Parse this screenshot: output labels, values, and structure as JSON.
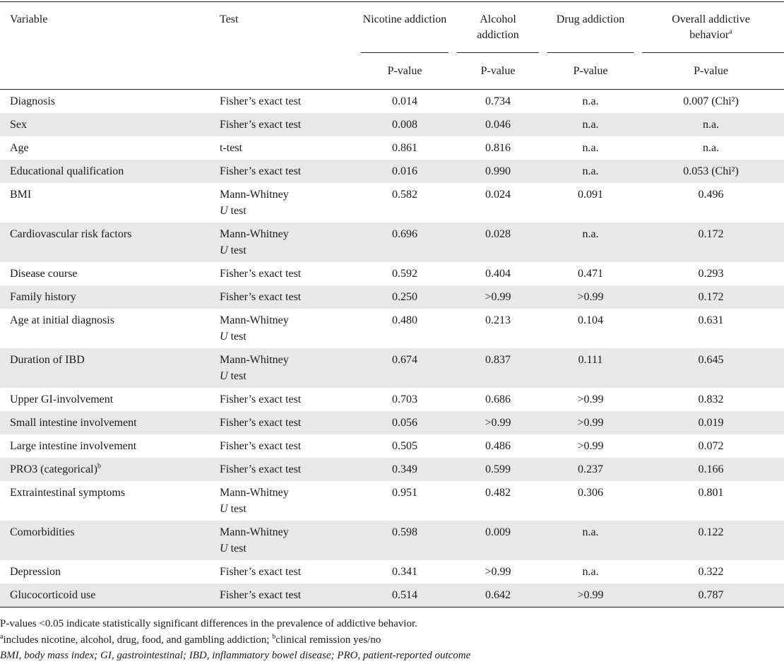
{
  "header": {
    "variable": "Variable",
    "test": "Test",
    "columns": [
      {
        "label": "Nicotine addiction",
        "sub": "P-value"
      },
      {
        "label": "Alcohol addiction",
        "sub": "P-value"
      },
      {
        "label": "Drug addiction",
        "sub": "P-value"
      },
      {
        "label": "Overall addictive behavior",
        "sup": "a",
        "sub": "P-value"
      }
    ]
  },
  "table": {
    "rows": [
      {
        "variable": "Diagnosis",
        "test": "Fisher’s exact test",
        "values": [
          "0.014",
          "0.734",
          "n.a.",
          "0.007 (Chi²)"
        ]
      },
      {
        "variable": "Sex",
        "test": "Fisher’s exact test",
        "values": [
          "0.008",
          "0.046",
          "n.a.",
          "n.a."
        ]
      },
      {
        "variable": "Age",
        "test": "t-test",
        "values": [
          "0.861",
          "0.816",
          "n.a.",
          "n.a."
        ]
      },
      {
        "variable": "Educational qualification",
        "test": "Fisher’s exact test",
        "values": [
          "0.016",
          "0.990",
          "n.a.",
          "0.053 (Chi²)"
        ]
      },
      {
        "variable": "BMI",
        "test": [
          "Mann-Whitney",
          "U",
          "test"
        ],
        "values": [
          "0.582",
          "0.024",
          "0.091",
          "0.496"
        ]
      },
      {
        "variable": "Cardiovascular risk factors",
        "test": [
          "Mann-Whitney",
          "U",
          "test"
        ],
        "values": [
          "0.696",
          "0.028",
          "n.a.",
          "0.172"
        ]
      },
      {
        "variable": "Disease course",
        "test": "Fisher’s exact test",
        "values": [
          "0.592",
          "0.404",
          "0.471",
          "0.293"
        ]
      },
      {
        "variable": "Family history",
        "test": "Fisher’s exact test",
        "values": [
          "0.250",
          ">0.99",
          ">0.99",
          "0.172"
        ]
      },
      {
        "variable": "Age at initial diagnosis",
        "test": [
          "Mann-Whitney",
          "U",
          "test"
        ],
        "values": [
          "0.480",
          "0.213",
          "0.104",
          "0.631"
        ]
      },
      {
        "variable": "Duration of IBD",
        "test": [
          "Mann-Whitney",
          "U",
          "test"
        ],
        "values": [
          "0.674",
          "0.837",
          "0.111",
          "0.645"
        ]
      },
      {
        "variable": "Upper GI-involvement",
        "test": "Fisher’s exact test",
        "values": [
          "0.703",
          "0.686",
          ">0.99",
          "0.832"
        ]
      },
      {
        "variable": "Small intestine involvement",
        "test": "Fisher’s exact test",
        "values": [
          "0.056",
          ">0.99",
          ">0.99",
          "0.019"
        ]
      },
      {
        "variable": "Large intestine involvement",
        "test": "Fisher’s exact test",
        "values": [
          "0.505",
          "0.486",
          ">0.99",
          "0.072"
        ]
      },
      {
        "variable": "PRO3 (categorical)",
        "sup": "b",
        "test": "Fisher’s exact test",
        "values": [
          "0.349",
          "0.599",
          "0.237",
          "0.166"
        ]
      },
      {
        "variable": "Extraintestinal symptoms",
        "test": [
          "Mann-Whitney",
          "U",
          "test"
        ],
        "values": [
          "0.951",
          "0.482",
          "0.306",
          "0.801"
        ]
      },
      {
        "variable": "Comorbidities",
        "test": [
          "Mann-Whitney",
          "U",
          "test"
        ],
        "values": [
          "0.598",
          "0.009",
          "n.a.",
          "0.122"
        ]
      },
      {
        "variable": "Depression",
        "test": "Fisher’s exact test",
        "values": [
          "0.341",
          ">0.99",
          "n.a.",
          "0.322"
        ]
      },
      {
        "variable": "Glucocorticoid use",
        "test": "Fisher’s exact test",
        "values": [
          "0.514",
          "0.642",
          ">0.99",
          "0.787"
        ]
      }
    ]
  },
  "footnotes": {
    "significance": "P-values <0.05 indicate statistically significant differences in the prevalence of addictive behavior.",
    "items": [
      {
        "mark": "a",
        "text": "includes nicotine, alcohol, drug, food, and gambling addiction;"
      },
      {
        "mark": "b",
        "text": "clinical remission yes/no"
      }
    ],
    "abbreviations": "BMI, body mass index; GI, gastrointestinal; IBD, inflammatory bowel disease; PRO, patient-reported outcome"
  }
}
